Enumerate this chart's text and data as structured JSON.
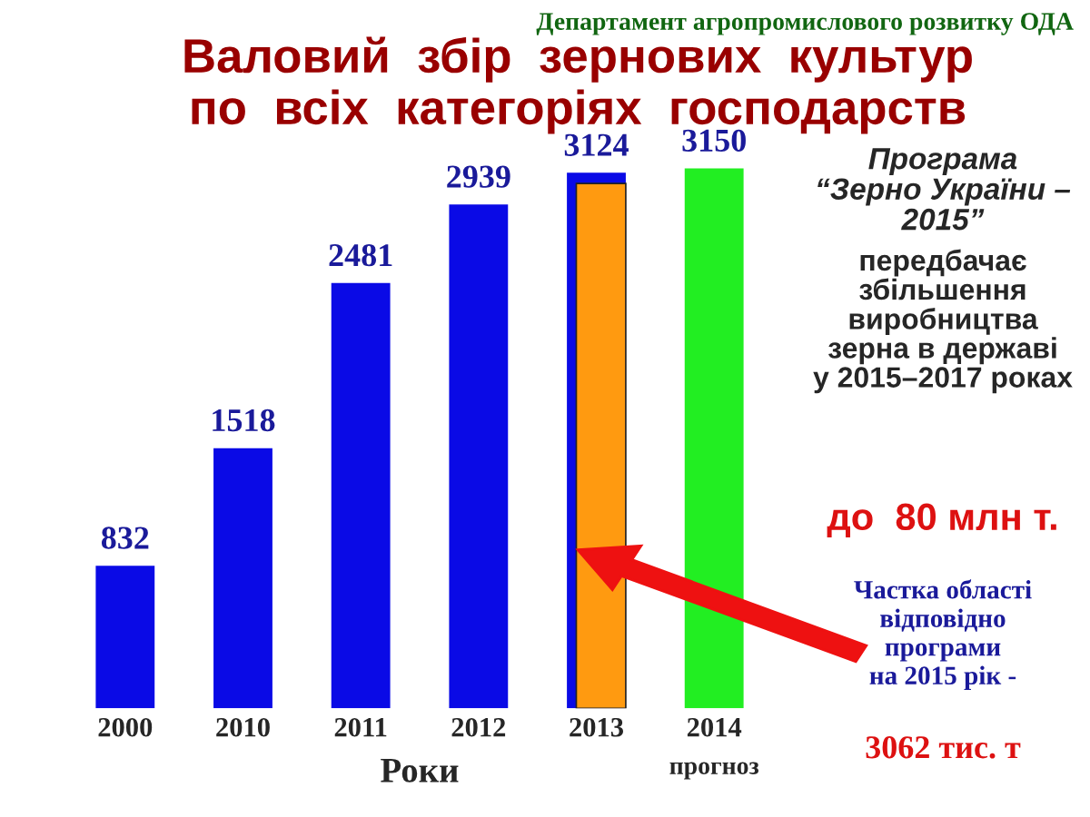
{
  "chart_data": {
    "type": "bar",
    "title": "Валовий  збір  зернових  культур\nпо  всіх  категоріях  господарств",
    "xlabel": "Роки",
    "categories": [
      "2000",
      "2010",
      "2011",
      "2012",
      "2013",
      "2014"
    ],
    "series": [
      {
        "values": [
          832,
          1518,
          2481,
          2939,
          3124,
          3150
        ],
        "value_labels": [
          "832",
          "1518",
          "2481",
          "2939",
          "3124",
          "3150"
        ],
        "colors": [
          "#0a0ae6",
          "#0a0ae6",
          "#0a0ae6",
          "#0a0ae6",
          "#0a0ae6",
          "#22ee22"
        ]
      },
      {
        "values": [
          null,
          null,
          null,
          null,
          3062,
          null
        ],
        "color": "#ff9a10"
      }
    ],
    "tick_labels": "x",
    "grid": false,
    "annotations": [
      "Департамент агропромислового розвитку ОДА",
      "прогноз",
      "Програма\n“Зерно України –\n2015”",
      "передбачає\nзбільшення\nвиробництва\nзерна в державі\nу 2015–2017 роках",
      "до  80 млн т.",
      "Частка області\nвідповідно\nпрограми\nна 2015 рік -",
      "3062 тис. т"
    ]
  }
}
